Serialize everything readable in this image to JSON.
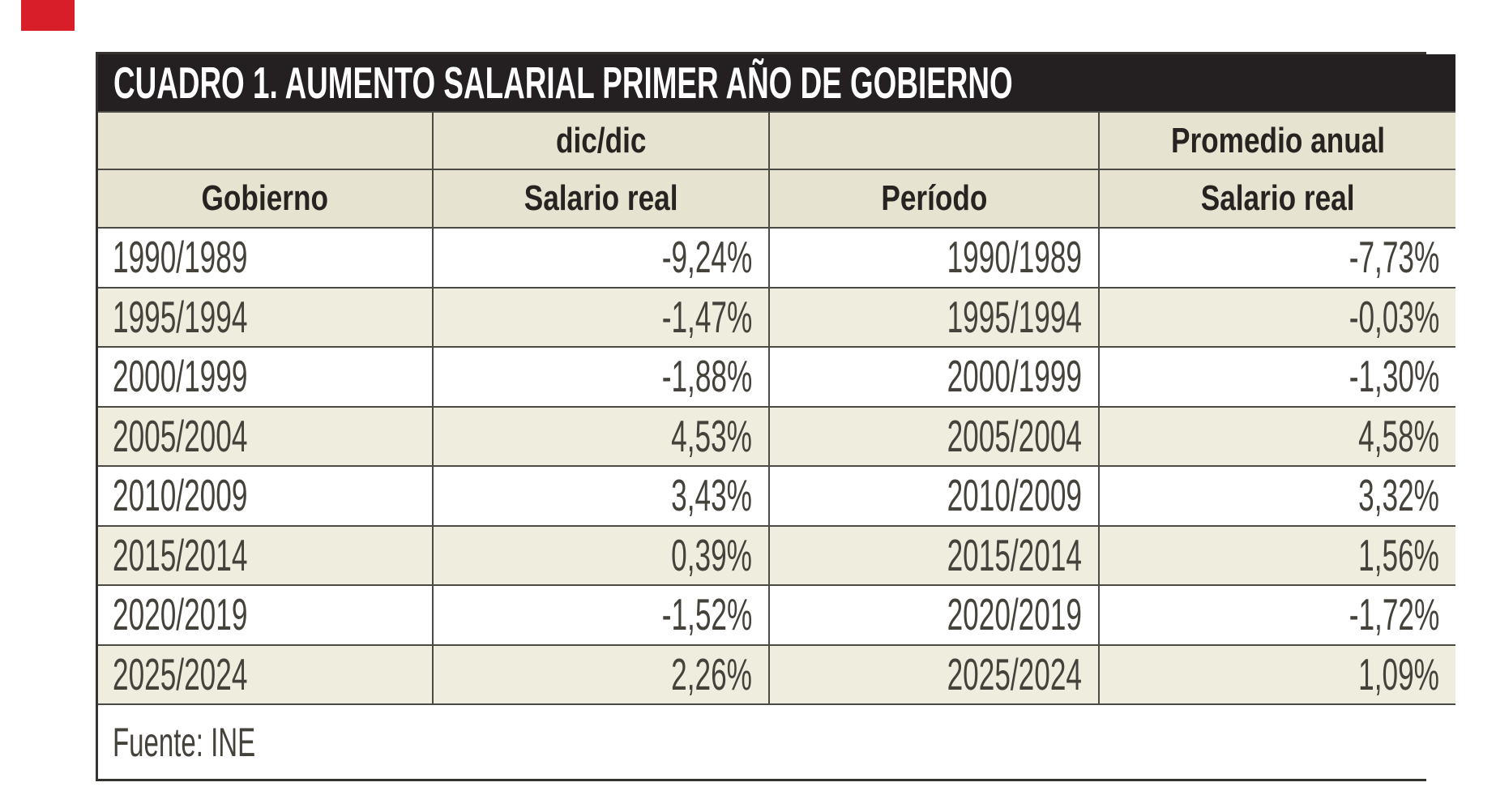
{
  "page": {
    "background": "#ffffff"
  },
  "corner_mark": {
    "color": "#d81e28"
  },
  "table": {
    "title": "CUADRO 1. AUMENTO SALARIAL PRIMER AÑO DE GOBIERNO",
    "group_headers": {
      "dic_dic": "dic/dic",
      "promedio": "Promedio anual"
    },
    "column_headers": {
      "gobierno": "Gobierno",
      "salario_dic": "Salario real",
      "periodo": "Período",
      "salario_prom": "Salario real"
    },
    "rows": [
      {
        "gobierno": "1990/1989",
        "dic_dic": "-9,24%",
        "periodo": "1990/1989",
        "promedio": "-7,73%"
      },
      {
        "gobierno": "1995/1994",
        "dic_dic": "-1,47%",
        "periodo": "1995/1994",
        "promedio": "-0,03%"
      },
      {
        "gobierno": "2000/1999",
        "dic_dic": "-1,88%",
        "periodo": "2000/1999",
        "promedio": "-1,30%"
      },
      {
        "gobierno": "2005/2004",
        "dic_dic": "4,53%",
        "periodo": "2005/2004",
        "promedio": "4,58%"
      },
      {
        "gobierno": "2010/2009",
        "dic_dic": "3,43%",
        "periodo": "2010/2009",
        "promedio": "3,32%"
      },
      {
        "gobierno": "2015/2014",
        "dic_dic": "0,39%",
        "periodo": "2015/2014",
        "promedio": "1,56%"
      },
      {
        "gobierno": "2020/2019",
        "dic_dic": "-1,52%",
        "periodo": "2020/2019",
        "promedio": "-1,72%"
      },
      {
        "gobierno": "2025/2024",
        "dic_dic": "2,26%",
        "periodo": "2025/2024",
        "promedio": "1,09%"
      }
    ],
    "footer": "Fuente: INE",
    "colors": {
      "title_bar_bg": "#242021",
      "title_text": "#ffffff",
      "header_bg": "#e6e3d1",
      "row_alt_bg": "#eeedde",
      "row_bg": "#ffffff",
      "inner_border": "#4b4a45",
      "outer_border": "#35332f",
      "data_text": "#45413b",
      "header_text": "#272321",
      "corner_red": "#d81e28"
    }
  },
  "chart_data": {
    "type": "table",
    "title": "CUADRO 1. AUMENTO SALARIAL PRIMER AÑO DE GOBIERNO",
    "columns": [
      "Gobierno",
      "Salario real (dic/dic)",
      "Período",
      "Salario real (Promedio anual)"
    ],
    "rows": [
      [
        "1990/1989",
        "-9,24%",
        "1990/1989",
        "-7,73%"
      ],
      [
        "1995/1994",
        "-1,47%",
        "1995/1994",
        "-0,03%"
      ],
      [
        "2000/1999",
        "-1,88%",
        "2000/1999",
        "-1,30%"
      ],
      [
        "2005/2004",
        "4,53%",
        "2005/2004",
        "4,58%"
      ],
      [
        "2010/2009",
        "3,43%",
        "2010/2009",
        "3,32%"
      ],
      [
        "2015/2014",
        "0,39%",
        "2015/2014",
        "1,56%"
      ],
      [
        "2020/2019",
        "-1,52%",
        "2020/2019",
        "-1,72%"
      ],
      [
        "2025/2024",
        "2,26%",
        "2025/2024",
        "1,09%"
      ]
    ],
    "source": "Fuente: INE"
  }
}
